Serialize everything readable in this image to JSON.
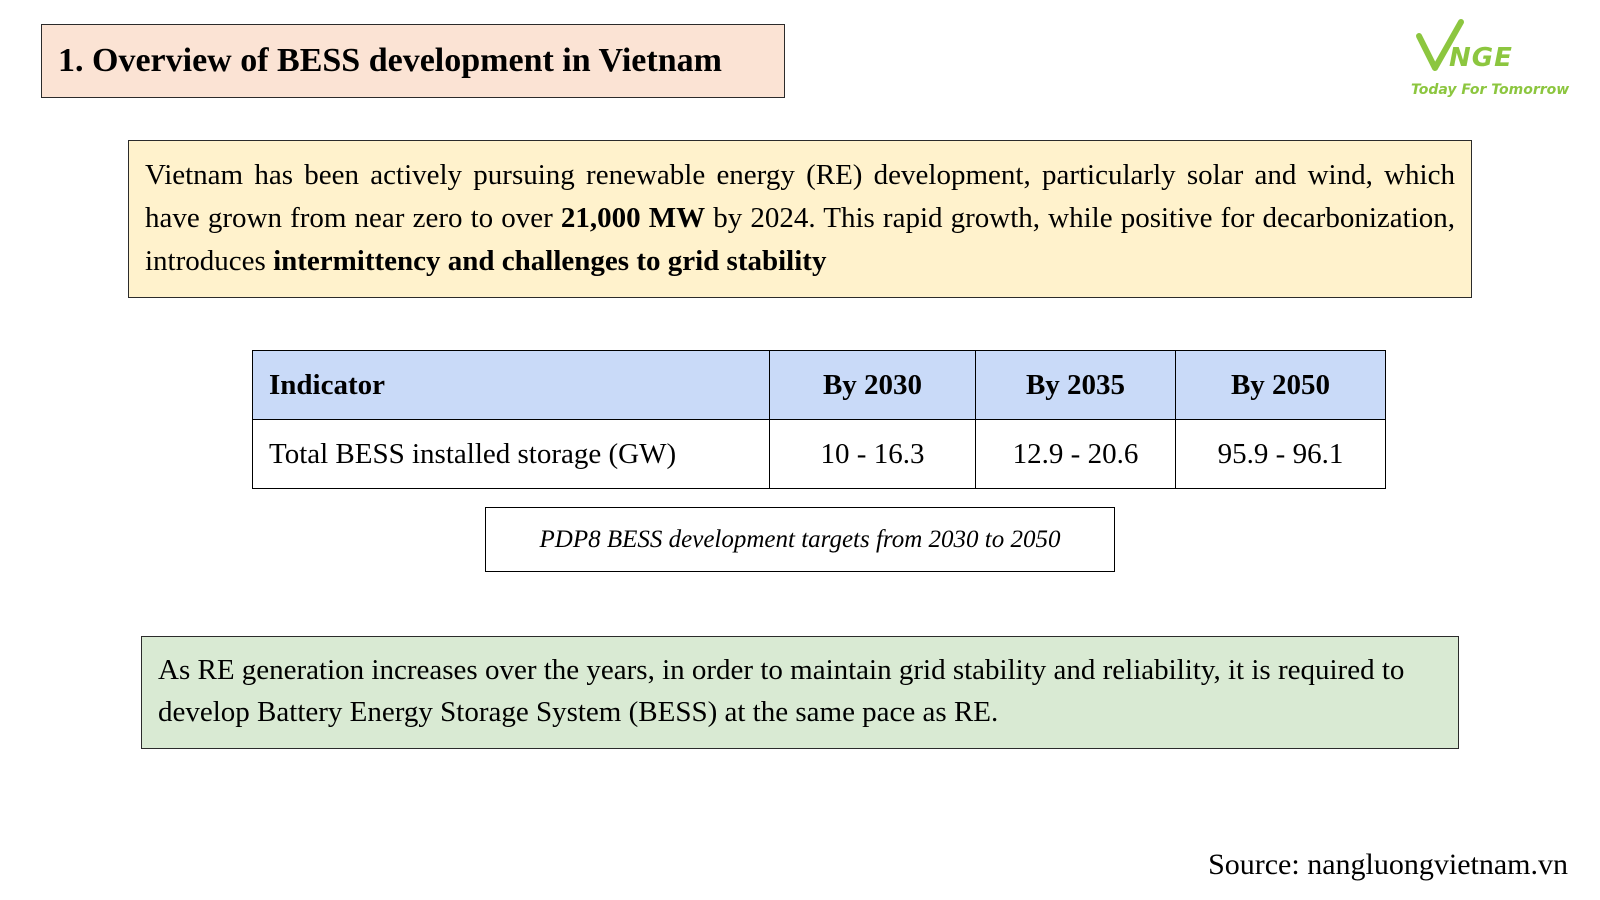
{
  "slide": {
    "title": "1. Overview of BESS development in Vietnam",
    "source": "Source: nangluongvietnam.vn"
  },
  "logo": {
    "brand": "VNGE",
    "tagline": "Today For Tomorrow",
    "color": "#8cc63f"
  },
  "intro": {
    "part1": "Vietnam has been actively pursuing renewable energy (RE) development, particularly solar and wind, which have grown from near zero to over ",
    "bold1": "21,000 MW",
    "part2": " by 2024. This rapid growth, while positive for decarbonization, introduces ",
    "bold2": "intermittency and challenges to grid stability"
  },
  "targets_table": {
    "headers": [
      "Indicator",
      "By 2030",
      "By 2035",
      "By 2050"
    ],
    "rows": [
      [
        "Total BESS installed storage (GW)",
        "10 - 16.3",
        "12.9 - 20.6",
        "95.9 - 96.1"
      ]
    ],
    "caption": "PDP8 BESS development targets from 2030 to 2050"
  },
  "note": {
    "text": "As RE generation increases over the years, in order to maintain grid stability and reliability, it is required to develop Battery Energy Storage System (BESS) at the same pace as RE."
  },
  "colors": {
    "title_bg": "#fbe3d4",
    "intro_bg": "#fff2cc",
    "table_header_bg": "#c9daf8",
    "note_bg": "#d9ead3"
  }
}
